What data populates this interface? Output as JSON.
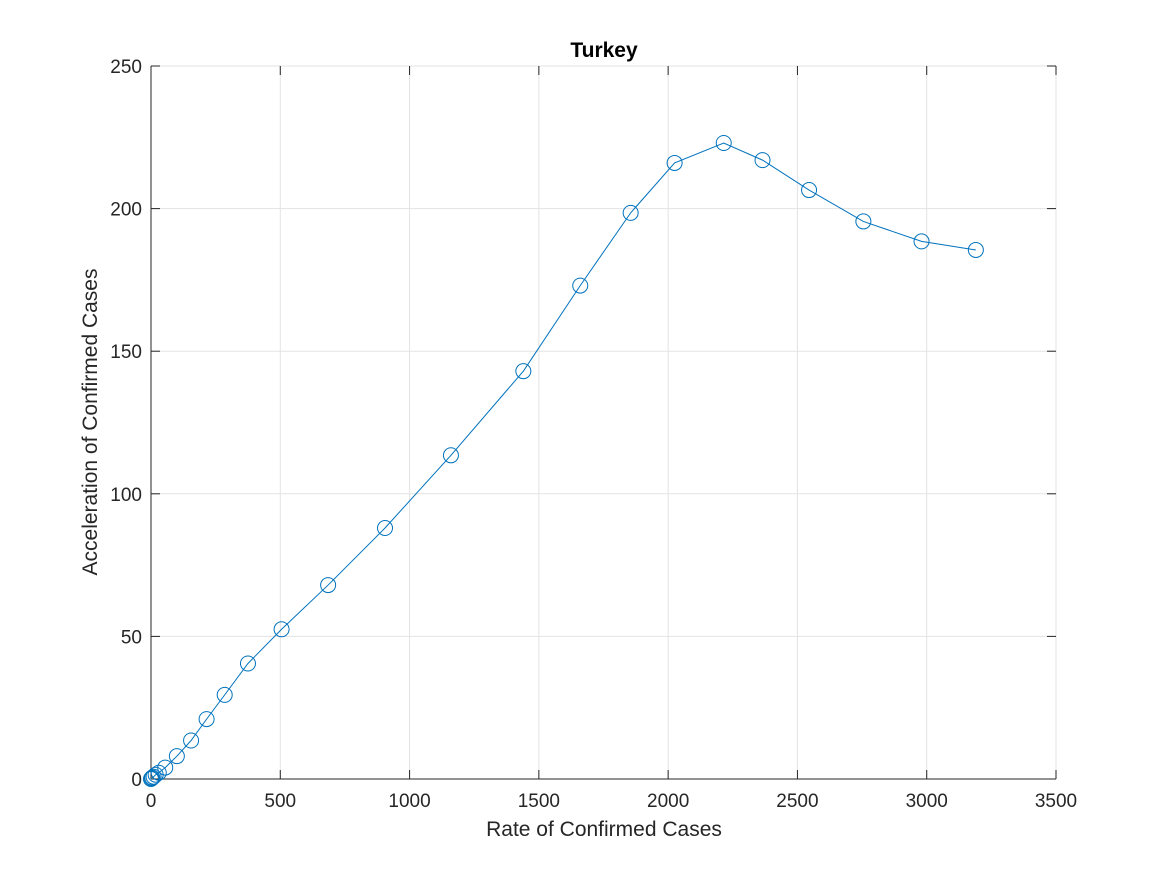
{
  "chart_data": {
    "type": "line",
    "title": "Turkey",
    "xlabel": "Rate of Confirmed Cases",
    "ylabel": "Acceleration of Confirmed Cases",
    "xlim": [
      0,
      3500
    ],
    "ylim": [
      0,
      250
    ],
    "xticks": [
      0,
      500,
      1000,
      1500,
      2000,
      2500,
      3000,
      3500
    ],
    "yticks": [
      0,
      50,
      100,
      150,
      200,
      250
    ],
    "grid": true,
    "marker": "circle",
    "color": "#0072BD",
    "series": [
      {
        "x": [
          0,
          2,
          5,
          10,
          18,
          30,
          55,
          100,
          155,
          215,
          285,
          375,
          505,
          685,
          905,
          1160,
          1440,
          1660,
          1855,
          2025,
          2215,
          2365,
          2545,
          2755,
          2980,
          3190
        ],
        "y": [
          0,
          0.2,
          0.5,
          0.8,
          1.5,
          2.2,
          4,
          8,
          13.5,
          21,
          29.5,
          40.5,
          52.5,
          68,
          88,
          113.5,
          143,
          173,
          198.5,
          216,
          223,
          217,
          206.5,
          195.5,
          188.5,
          185.5
        ]
      }
    ]
  }
}
